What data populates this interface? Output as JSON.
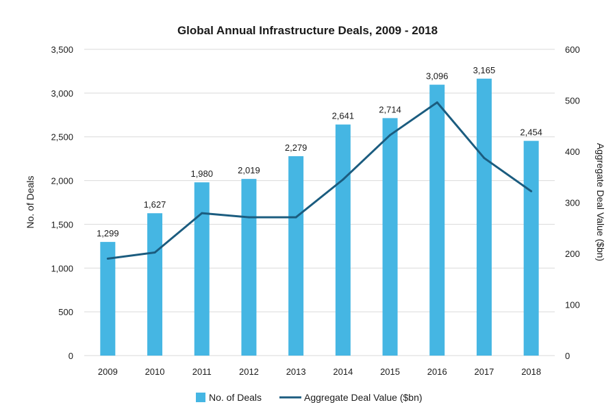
{
  "chart_data": {
    "type": "bar",
    "title": "Global Annual Infrastructure Deals, 2009 - 2018",
    "categories": [
      "2009",
      "2010",
      "2011",
      "2012",
      "2013",
      "2014",
      "2015",
      "2016",
      "2017",
      "2018"
    ],
    "series": [
      {
        "name": "No. of Deals",
        "type": "bar",
        "axis": "left",
        "color": "#45b6e3",
        "values": [
          1299,
          1627,
          1980,
          2019,
          2279,
          2641,
          2714,
          3096,
          3165,
          2454
        ],
        "labels": [
          "1,299",
          "1,627",
          "1,980",
          "2,019",
          "2,279",
          "2,641",
          "2,714",
          "3,096",
          "3,165",
          "2,454"
        ]
      },
      {
        "name": "Aggregate Deal Value ($bn)",
        "type": "line",
        "axis": "right",
        "color": "#1b5c7f",
        "values": [
          190,
          202,
          279,
          271,
          271,
          345,
          432,
          496,
          387,
          322
        ]
      }
    ],
    "ylabel": "No. of Deals",
    "ylim": [
      0,
      3500
    ],
    "yticks": [
      0,
      500,
      1000,
      1500,
      2000,
      2500,
      3000,
      3500
    ],
    "ytick_labels": [
      "0",
      "500",
      "1,000",
      "1,500",
      "2,000",
      "2,500",
      "3,000",
      "3,500"
    ],
    "y2label": "Aggregate Deal Value ($bn)",
    "y2lim": [
      0,
      600
    ],
    "y2ticks": [
      0,
      100,
      200,
      300,
      400,
      500,
      600
    ],
    "y2tick_labels": [
      "0",
      "100",
      "200",
      "300",
      "400",
      "500",
      "600"
    ],
    "grid": true,
    "legend_position": "bottom-center"
  }
}
